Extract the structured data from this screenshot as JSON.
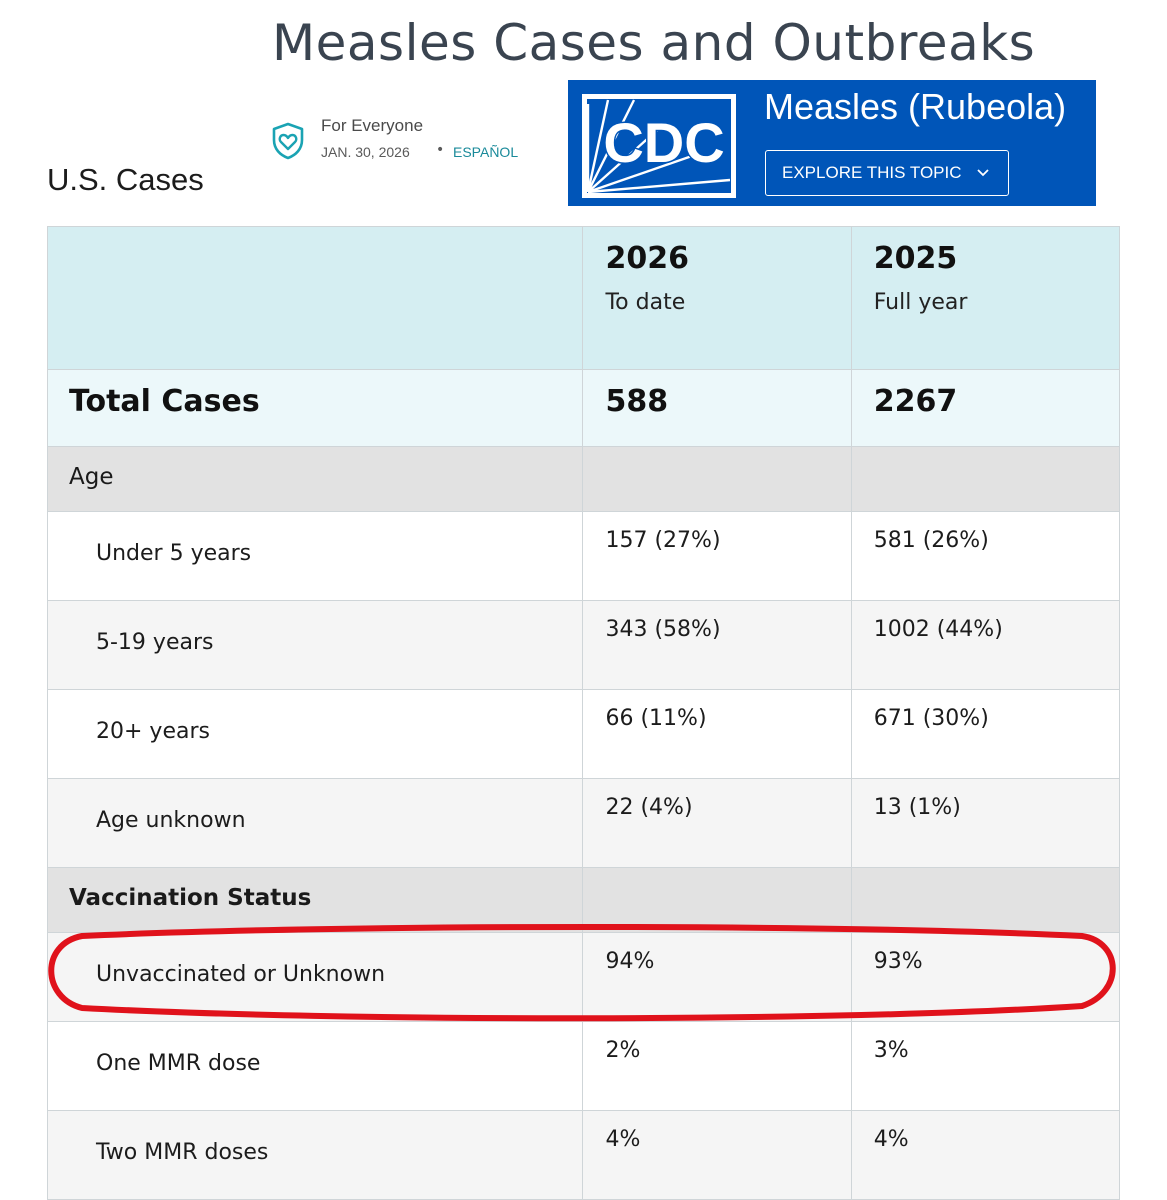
{
  "page": {
    "title": "Measles Cases and Outbreaks"
  },
  "meta": {
    "audience": "For Everyone",
    "date": "JAN. 30, 2026",
    "separator": "•",
    "language_link": "ESPAÑOL"
  },
  "section": {
    "heading": "U.S. Cases"
  },
  "banner": {
    "logo_text": "CDC",
    "topic": "Measles (Rubeola)",
    "explore_label": "EXPLORE THIS TOPIC",
    "background_color": "#0055b8"
  },
  "table": {
    "columns": [
      {
        "year": "2026",
        "subtitle": "To date"
      },
      {
        "year": "2025",
        "subtitle": "Full year"
      }
    ],
    "total": {
      "label": "Total Cases",
      "values": [
        "588",
        "2267"
      ]
    },
    "groups": [
      {
        "label": "Age",
        "rows": [
          {
            "label": "Under 5 years",
            "values": [
              "157 (27%)",
              "581 (26%)"
            ]
          },
          {
            "label": "5-19 years",
            "values": [
              "343 (58%)",
              "1002 (44%)"
            ]
          },
          {
            "label": "20+ years",
            "values": [
              "66 (11%)",
              "671 (30%)"
            ]
          },
          {
            "label": "Age unknown",
            "values": [
              "22 (4%)",
              "13 (1%)"
            ]
          }
        ]
      },
      {
        "label": "Vaccination Status",
        "rows": [
          {
            "label": "Unvaccinated or Unknown",
            "values": [
              "94%",
              "93%"
            ]
          },
          {
            "label": "One MMR dose",
            "values": [
              "2%",
              "3%"
            ]
          },
          {
            "label": "Two MMR doses",
            "values": [
              "4%",
              "4%"
            ]
          }
        ]
      }
    ]
  },
  "annotation": {
    "highlight_color": "#e0121b"
  }
}
